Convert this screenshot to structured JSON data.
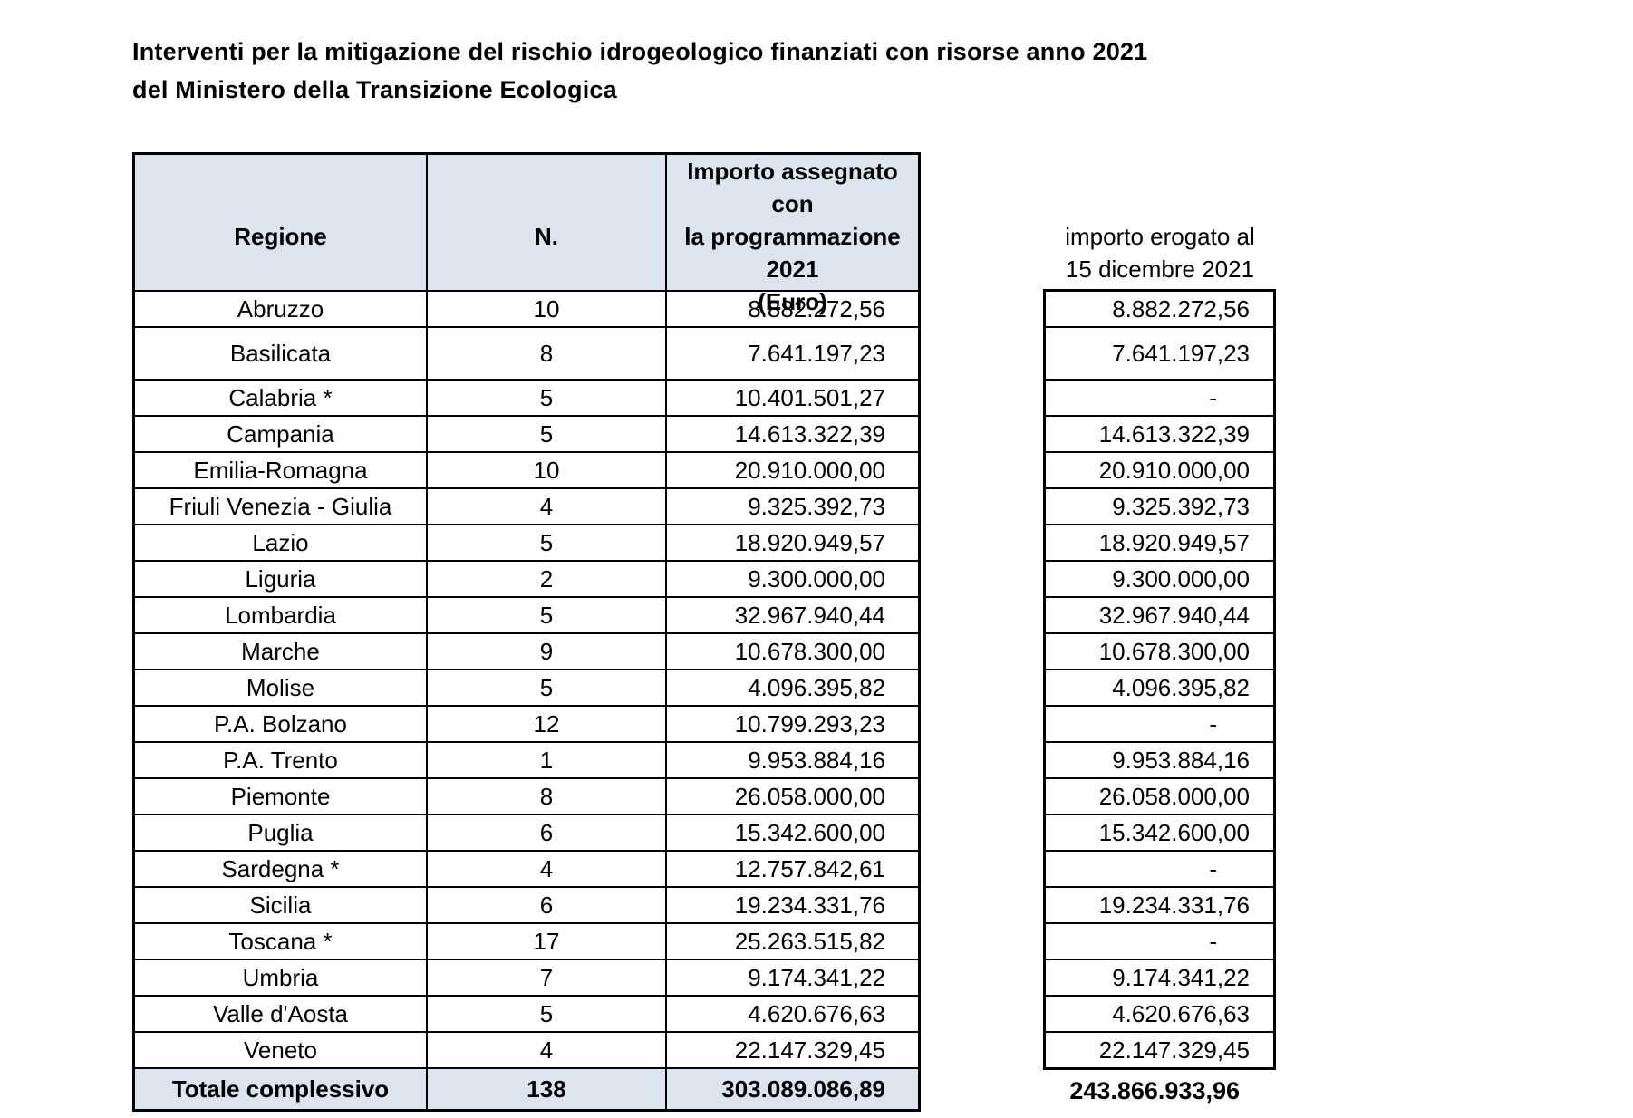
{
  "title": {
    "line1": "Interventi per la mitigazione del rischio idrogeologico finanziati con risorse anno 2021",
    "line2": "del Ministero della Transizione Ecologica"
  },
  "colors": {
    "page_bg": "#ffffff",
    "header_bg": "#dce4ef",
    "border": "#000000",
    "text": "#000000"
  },
  "table": {
    "headers": {
      "region": "Regione",
      "count": "N.",
      "amount": "Importo assegnato con\nla programmazione\n2021\n(Euro)"
    },
    "rows": [
      {
        "regione": "Abruzzo",
        "n": "10",
        "importo": "8.882.272,56",
        "erogato": "8.882.272,56"
      },
      {
        "regione": "Basilicata",
        "n": "8",
        "importo": "7.641.197,23",
        "erogato": "7.641.197,23"
      },
      {
        "regione": "Calabria *",
        "n": "5",
        "importo": "10.401.501,27",
        "erogato": "-"
      },
      {
        "regione": "Campania",
        "n": "5",
        "importo": "14.613.322,39",
        "erogato": "14.613.322,39"
      },
      {
        "regione": "Emilia-Romagna",
        "n": "10",
        "importo": "20.910.000,00",
        "erogato": "20.910.000,00"
      },
      {
        "regione": "Friuli Venezia - Giulia",
        "n": "4",
        "importo": "9.325.392,73",
        "erogato": "9.325.392,73"
      },
      {
        "regione": "Lazio",
        "n": "5",
        "importo": "18.920.949,57",
        "erogato": "18.920.949,57"
      },
      {
        "regione": "Liguria",
        "n": "2",
        "importo": "9.300.000,00",
        "erogato": "9.300.000,00"
      },
      {
        "regione": "Lombardia",
        "n": "5",
        "importo": "32.967.940,44",
        "erogato": "32.967.940,44"
      },
      {
        "regione": "Marche",
        "n": "9",
        "importo": "10.678.300,00",
        "erogato": "10.678.300,00"
      },
      {
        "regione": "Molise",
        "n": "5",
        "importo": "4.096.395,82",
        "erogato": "4.096.395,82"
      },
      {
        "regione": "P.A. Bolzano",
        "n": "12",
        "importo": "10.799.293,23",
        "erogato": "-"
      },
      {
        "regione": "P.A. Trento",
        "n": "1",
        "importo": "9.953.884,16",
        "erogato": "9.953.884,16"
      },
      {
        "regione": "Piemonte",
        "n": "8",
        "importo": "26.058.000,00",
        "erogato": "26.058.000,00"
      },
      {
        "regione": "Puglia",
        "n": "6",
        "importo": "15.342.600,00",
        "erogato": "15.342.600,00"
      },
      {
        "regione": "Sardegna *",
        "n": "4",
        "importo": "12.757.842,61",
        "erogato": "-"
      },
      {
        "regione": "Sicilia",
        "n": "6",
        "importo": "19.234.331,76",
        "erogato": "19.234.331,76"
      },
      {
        "regione": "Toscana *",
        "n": "17",
        "importo": "25.263.515,82",
        "erogato": "-"
      },
      {
        "regione": "Umbria",
        "n": "7",
        "importo": "9.174.341,22",
        "erogato": "9.174.341,22"
      },
      {
        "regione": "Valle d'Aosta",
        "n": "5",
        "importo": "4.620.676,63",
        "erogato": "4.620.676,63"
      },
      {
        "regione": "Veneto",
        "n": "4",
        "importo": "22.147.329,45",
        "erogato": "22.147.329,45"
      }
    ],
    "total_row": {
      "label": "Totale complessivo",
      "n": "138",
      "importo": "303.089.086,89"
    }
  },
  "erogato_panel": {
    "header": "importo erogato al\n15 dicembre 2021",
    "total": "243.866.933,96"
  }
}
